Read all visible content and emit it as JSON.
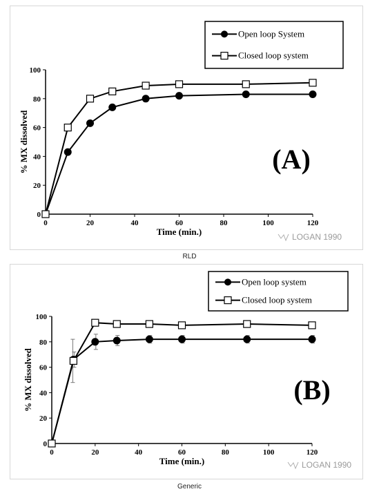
{
  "chart_data": [
    {
      "type": "line",
      "panel_label": "(A)",
      "xlabel": "Time (min.)",
      "ylabel": "% MX dissolved",
      "xlim": [
        0,
        120
      ],
      "ylim": [
        0,
        100
      ],
      "x_ticks": [
        0,
        20,
        40,
        60,
        80,
        100,
        120
      ],
      "y_ticks": [
        0,
        20,
        40,
        60,
        80,
        100
      ],
      "grid": false,
      "legend_position": "top-right",
      "series": [
        {
          "name": "Open loop System",
          "marker": "filled-circle",
          "x": [
            0,
            10,
            20,
            30,
            45,
            60,
            90,
            120
          ],
          "y": [
            0,
            43,
            63,
            74,
            80,
            82,
            83,
            83
          ]
        },
        {
          "name": "Closed loop system",
          "marker": "open-square",
          "x": [
            0,
            10,
            20,
            30,
            45,
            60,
            90,
            120
          ],
          "y": [
            0,
            60,
            80,
            85,
            89,
            90,
            90,
            91
          ]
        }
      ],
      "watermark": "LOGAN 1990"
    },
    {
      "type": "line",
      "panel_label": "(B)",
      "xlabel": "Time (min.)",
      "ylabel": "% MX dissolved",
      "xlim": [
        0,
        120
      ],
      "ylim": [
        0,
        100
      ],
      "x_ticks": [
        0,
        20,
        40,
        60,
        80,
        100,
        120
      ],
      "y_ticks": [
        0,
        20,
        40,
        60,
        80,
        100
      ],
      "grid": false,
      "legend_position": "top-right",
      "series": [
        {
          "name": "Open loop system",
          "marker": "filled-circle",
          "x": [
            0,
            10,
            20,
            30,
            45,
            60,
            90,
            120
          ],
          "y": [
            0,
            66,
            80,
            81,
            82,
            82,
            82,
            82
          ],
          "error": [
            0,
            6,
            6,
            4,
            3,
            3,
            3,
            3
          ]
        },
        {
          "name": "Closed loop system",
          "marker": "open-square",
          "x": [
            0,
            10,
            20,
            30,
            45,
            60,
            90,
            120
          ],
          "y": [
            0,
            65,
            95,
            94,
            94,
            93,
            94,
            93
          ],
          "error": [
            0,
            17,
            2,
            2,
            2,
            2,
            2,
            2
          ]
        }
      ],
      "watermark": "LOGAN 1990"
    }
  ],
  "captions": {
    "a": "RLD",
    "b": "Generic"
  }
}
